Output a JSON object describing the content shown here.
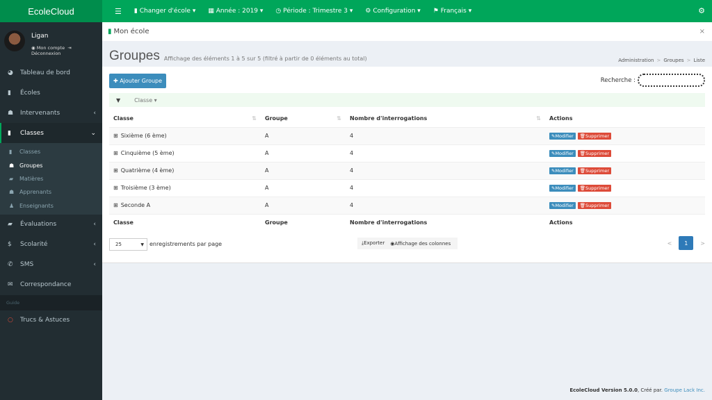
{
  "app": {
    "title": "EcoleCloud"
  },
  "topbar": {
    "menu_icon": "bars-icon",
    "items": [
      {
        "icon": "building-icon",
        "label": "Changer d'école"
      },
      {
        "icon": "calendar-icon",
        "label": "Année : 2019"
      },
      {
        "icon": "clock-icon",
        "label": "Période : Trimestre 3"
      },
      {
        "icon": "gear-icon",
        "label": "Configuration"
      },
      {
        "icon": "flag-icon",
        "label": "Français"
      }
    ],
    "right_icon": "cogs-icon"
  },
  "user": {
    "name": "Ligan",
    "account": "Mon compte",
    "logout": "Déconnexion"
  },
  "sidebar": {
    "items": [
      {
        "label": "Tableau de bord"
      },
      {
        "label": "Écoles"
      },
      {
        "label": "Intervenants"
      },
      {
        "label": "Classes"
      }
    ],
    "sub": [
      {
        "label": "Classes"
      },
      {
        "label": "Groupes"
      },
      {
        "label": "Matières"
      },
      {
        "label": "Apprenants"
      },
      {
        "label": "Enseignants"
      }
    ],
    "items2": [
      {
        "label": "Évaluations"
      },
      {
        "label": "Scolarité"
      },
      {
        "label": "SMS"
      },
      {
        "label": "Correspondance"
      }
    ],
    "header": "Guide",
    "guide_item": "Trucs & Astuces"
  },
  "section": {
    "title": "Mon école"
  },
  "page": {
    "title": "Groupes",
    "subtitle": "Affichage des éléments 1 à 5 sur 5 (filtré à partir de 0 éléments au total)",
    "breadcrumb": [
      "Administration",
      "Groupes",
      "Liste"
    ]
  },
  "toolbar": {
    "add_label": "Ajouter Groupe",
    "search_label": "Recherche :",
    "search_value": "",
    "filter_label": "Classe"
  },
  "table": {
    "headers": [
      "Classe",
      "Groupe",
      "Nombre d'interrogations",
      "Actions"
    ],
    "rows": [
      {
        "classe": "Sixième (6 ème)",
        "groupe": "A",
        "nb": "4"
      },
      {
        "classe": "Cinquième (5 ème)",
        "groupe": "A",
        "nb": "4"
      },
      {
        "classe": "Quatrième (4 ème)",
        "groupe": "A",
        "nb": "4"
      },
      {
        "classe": "Troisième (3 ème)",
        "groupe": "A",
        "nb": "4"
      },
      {
        "classe": "Seconde A",
        "groupe": "A",
        "nb": "4"
      }
    ],
    "edit_label": "Modifier",
    "delete_label": "Supprimer"
  },
  "footer_controls": {
    "page_length": "25",
    "page_length_label": "enregistrements par page",
    "export": "Exporter",
    "columns": "Affichage des colonnes",
    "prev": "<",
    "current_page": "1",
    "next": ">"
  },
  "footer": {
    "version": "EcoleCloud Version 5.0.0",
    "created": ", Créé par.",
    "author": "Groupe Lack Inc."
  },
  "colors": {
    "brand": "#00a65a",
    "sidebar": "#222d32",
    "primary": "#3c8dbc",
    "danger": "#dd4b39"
  }
}
